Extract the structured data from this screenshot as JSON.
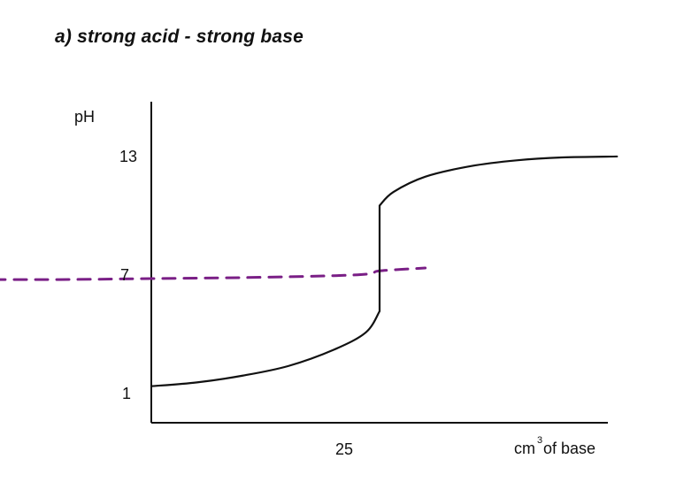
{
  "title": "a) strong acid - strong base",
  "colors": {
    "curve": "#111111",
    "axis": "#111111",
    "annotation": "#7a1f86"
  },
  "chart_data": {
    "type": "line",
    "title": "a) strong acid - strong base",
    "xlabel": {
      "prefix": "cm",
      "superscript": "3",
      "suffix": " of base"
    },
    "ylabel": "pH",
    "x_ticks": [
      {
        "value": 25,
        "label": "25"
      }
    ],
    "y_ticks": [
      {
        "value": 1,
        "label": "1"
      },
      {
        "value": 7,
        "label": "7"
      },
      {
        "value": 13,
        "label": "13"
      }
    ],
    "xlim": [
      0,
      50
    ],
    "ylim": [
      -0.9,
      15.8
    ],
    "series": [
      {
        "color": "#111111",
        "points": [
          [
            0,
            1.0
          ],
          [
            5,
            1.2
          ],
          [
            10,
            1.55
          ],
          [
            15,
            2.05
          ],
          [
            20,
            2.9
          ],
          [
            23.5,
            3.8
          ],
          [
            25,
            4.9
          ],
          [
            25,
            10.4
          ],
          [
            26.5,
            11.1
          ],
          [
            30,
            11.9
          ],
          [
            35,
            12.45
          ],
          [
            40,
            12.75
          ],
          [
            45,
            12.9
          ],
          [
            51,
            12.95
          ]
        ]
      }
    ],
    "annotations": [
      {
        "type": "dashed-line",
        "color": "#7a1f86",
        "points": [
          [
            -22,
            6.55
          ],
          [
            -10,
            6.55
          ],
          [
            0,
            6.6
          ],
          [
            10,
            6.65
          ],
          [
            20,
            6.75
          ],
          [
            24,
            6.85
          ],
          [
            25,
            7.0
          ],
          [
            30,
            7.15
          ]
        ]
      }
    ],
    "grid": false,
    "legend": "none"
  }
}
